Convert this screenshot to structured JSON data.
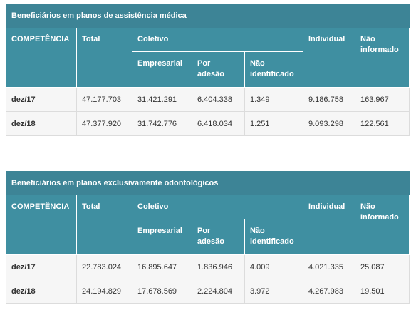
{
  "tables": [
    {
      "title": "Beneficiários em planos de assistência médica",
      "header_top": [
        "COMPETÊNCIA",
        "Total",
        "Coletivo",
        "Individual",
        "Não informado"
      ],
      "header_sub": [
        "Empresarial",
        "Por adesão",
        "Não identificado"
      ],
      "rows": [
        [
          "dez/17",
          "47.177.703",
          "31.421.291",
          "6.404.338",
          "1.349",
          "9.186.758",
          "163.967"
        ],
        [
          "dez/18",
          "47.377.920",
          "31.742.776",
          "6.418.034",
          "1.251",
          "9.093.298",
          "122.561"
        ]
      ]
    },
    {
      "title": "Beneficiários em planos exclusivamente odontológicos",
      "header_top": [
        "COMPETÊNCIA",
        "Total",
        "Coletivo",
        "Individual",
        "Não Informado"
      ],
      "header_sub": [
        "Empresarial",
        "Por adesão",
        "Não identificado"
      ],
      "rows": [
        [
          "dez/17",
          "22.783.024",
          "16.895.647",
          "1.836.946",
          "4.009",
          "4.021.335",
          "25.087"
        ],
        [
          "dez/18",
          "24.194.829",
          "17.678.569",
          "2.224.804",
          "3.972",
          "4.267.983",
          "19.501"
        ]
      ]
    }
  ]
}
